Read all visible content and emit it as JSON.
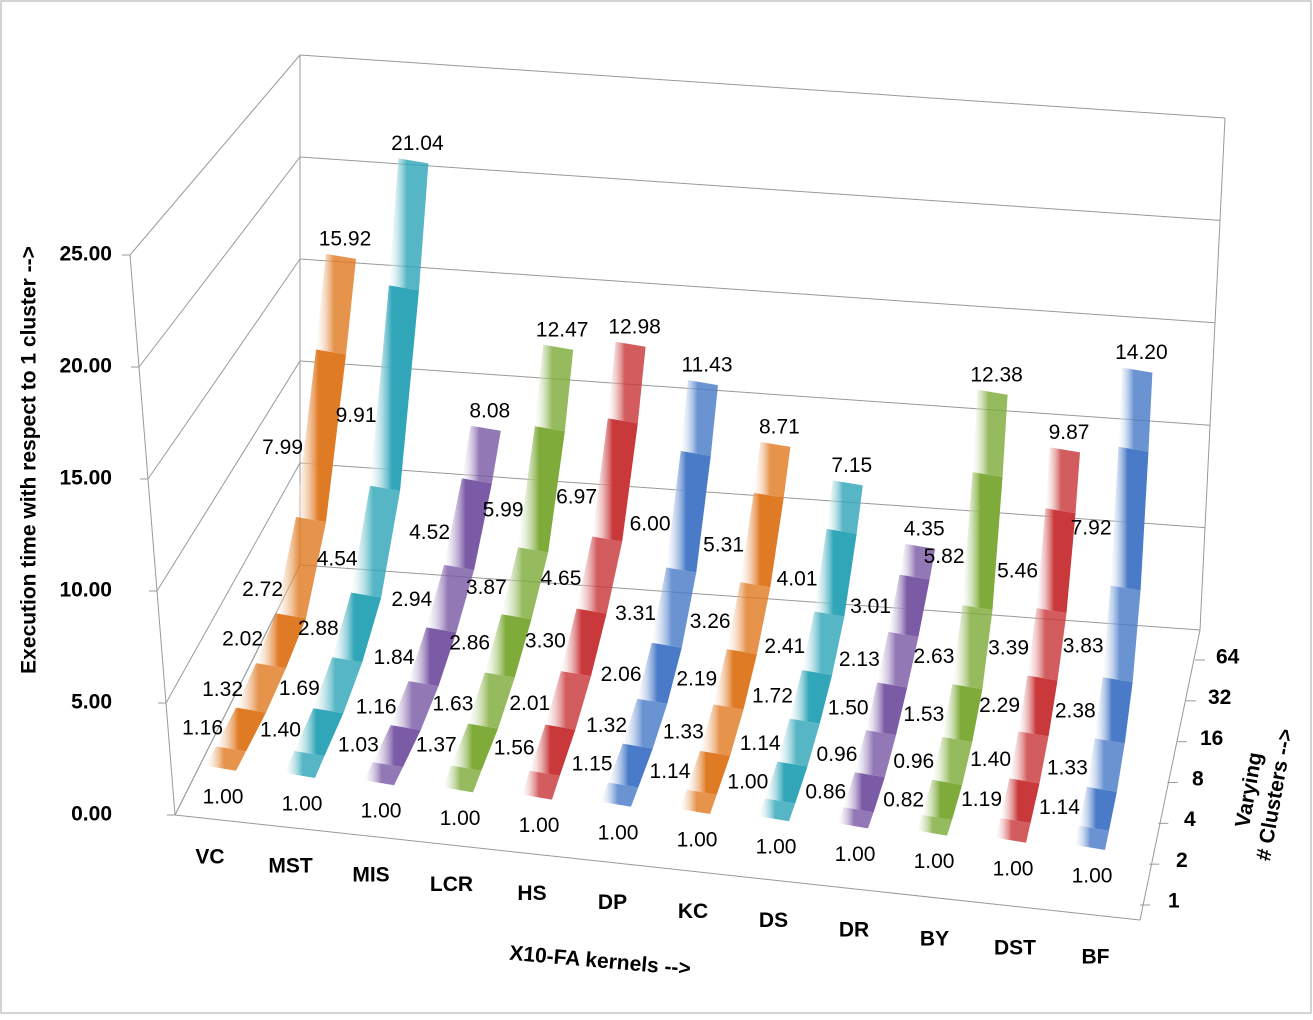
{
  "chart_data": {
    "type": "ribbon3d",
    "y_label": "Execution time with respect to 1 cluster -->",
    "x_label": "X10-FA kernels -->",
    "z_label": [
      "Varying",
      "# Clusters -->"
    ],
    "depth_categories": [
      "1",
      "2",
      "4",
      "8",
      "16",
      "32",
      "64"
    ],
    "ylim": [
      0,
      25
    ],
    "yticks": [
      {
        "value": 0,
        "label": "0.00"
      },
      {
        "value": 5,
        "label": "5.00"
      },
      {
        "value": 10,
        "label": "10.00"
      },
      {
        "value": 15,
        "label": "15.00"
      },
      {
        "value": 20,
        "label": "20.00"
      },
      {
        "value": 25,
        "label": "25.00"
      }
    ],
    "grid": true,
    "series": [
      {
        "name": "VC",
        "color": "#e07b25",
        "values": [
          1,
          1.16,
          1.32,
          2.02,
          2.72,
          7.99,
          15.92
        ],
        "value_labels": [
          "1.00",
          "1.16",
          "1.32",
          "2.02",
          "2.72",
          "7.99",
          "15.92"
        ]
      },
      {
        "name": "MST",
        "color": "#31a6b8",
        "values": [
          1,
          1.4,
          1.69,
          2.88,
          4.54,
          9.91,
          21.04
        ],
        "value_labels": [
          "1.00",
          "1.40",
          "1.69",
          "2.88",
          "4.54",
          "9.91",
          "21.04"
        ]
      },
      {
        "name": "MIS",
        "color": "#7b5aa6",
        "values": [
          1,
          1.03,
          1.16,
          1.84,
          2.94,
          4.52,
          8.08
        ],
        "value_labels": [
          "1.00",
          "1.03",
          "1.16",
          "1.84",
          "2.94",
          "4.52",
          "8.08"
        ]
      },
      {
        "name": "LCR",
        "color": "#7fab3b",
        "values": [
          1,
          1.37,
          1.63,
          2.86,
          3.87,
          5.99,
          12.47
        ],
        "value_labels": [
          "1.00",
          "1.37",
          "1.63",
          "2.86",
          "3.87",
          "5.99",
          "12.47"
        ]
      },
      {
        "name": "HS",
        "color": "#c9393b",
        "values": [
          1,
          1.56,
          2.01,
          3.3,
          4.65,
          6.97,
          12.98
        ],
        "value_labels": [
          "1.00",
          "1.56",
          "2.01",
          "3.30",
          "4.65",
          "6.97",
          "12.98"
        ]
      },
      {
        "name": "DP",
        "color": "#4a7bc8",
        "values": [
          1,
          1.15,
          1.32,
          2.06,
          3.31,
          6.0,
          11.43
        ],
        "value_labels": [
          "1.00",
          "1.15",
          "1.32",
          "2.06",
          "3.31",
          "6.00",
          "11.43"
        ]
      },
      {
        "name": "KC",
        "color": "#e07b25",
        "values": [
          1,
          1.14,
          1.33,
          2.19,
          3.26,
          5.31,
          8.71
        ],
        "value_labels": [
          "1.00",
          "1.14",
          "1.33",
          "2.19",
          "3.26",
          "5.31",
          "8.71"
        ]
      },
      {
        "name": "DS",
        "color": "#31a6b8",
        "values": [
          1,
          1.0,
          1.14,
          1.72,
          2.41,
          4.01,
          7.15
        ],
        "value_labels": [
          "1.00",
          "1.00",
          "1.14",
          "1.72",
          "2.41",
          "4.01",
          "7.15"
        ]
      },
      {
        "name": "DR",
        "color": "#7b5aa6",
        "values": [
          1,
          0.86,
          0.96,
          1.5,
          2.13,
          3.01,
          4.35
        ],
        "value_labels": [
          "1.00",
          "0.86",
          "0.96",
          "1.50",
          "2.13",
          "3.01",
          "4.35"
        ]
      },
      {
        "name": "BY",
        "color": "#7fab3b",
        "values": [
          1,
          0.82,
          0.96,
          1.53,
          2.63,
          5.82,
          12.38
        ],
        "value_labels": [
          "1.00",
          "0.82",
          "0.96",
          "1.53",
          "2.63",
          "5.82",
          "12.38"
        ]
      },
      {
        "name": "DST",
        "color": "#c9393b",
        "values": [
          1,
          1.19,
          1.4,
          2.29,
          3.39,
          5.46,
          9.87
        ],
        "value_labels": [
          "1.00",
          "1.19",
          "1.40",
          "2.29",
          "3.39",
          "5.46",
          "9.87"
        ]
      },
      {
        "name": "BF",
        "color": "#4a7bc8",
        "values": [
          1,
          1.14,
          1.33,
          2.38,
          3.83,
          7.92,
          14.2
        ],
        "value_labels": [
          "1.00",
          "1.14",
          "1.33",
          "2.38",
          "3.83",
          "7.92",
          "14.20"
        ]
      }
    ]
  }
}
